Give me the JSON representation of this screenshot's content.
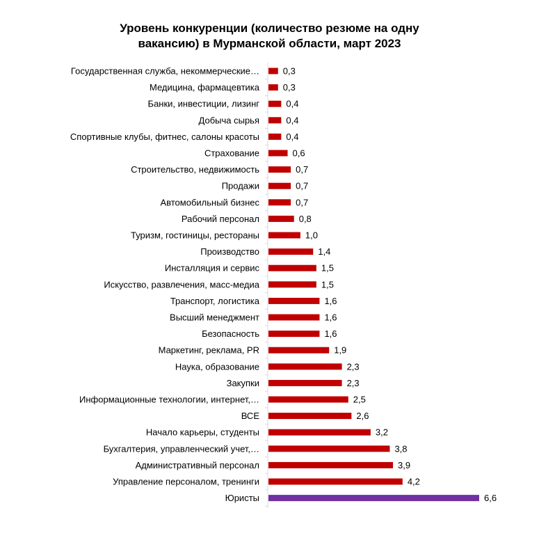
{
  "chart_data": {
    "type": "bar",
    "orientation": "horizontal",
    "title_lines": [
      "Уровень конкуренции (количество резюме на одну",
      "вакансию) в Мурманской области, март 2023"
    ],
    "xlabel": "",
    "ylabel": "",
    "xlim": [
      0,
      7.5
    ],
    "grid": false,
    "legend": "none",
    "categories": [
      "Государственная служба, некоммерческие…",
      "Медицина, фармацевтика",
      "Банки, инвестиции, лизинг",
      "Добыча сырья",
      "Спортивные клубы, фитнес, салоны красоты",
      "Страхование",
      "Строительство, недвижимость",
      "Продажи",
      "Автомобильный бизнес",
      "Рабочий персонал",
      "Туризм, гостиницы, рестораны",
      "Производство",
      "Инсталляция и сервис",
      "Искусство, развлечения, масс-медиа",
      "Транспорт, логистика",
      "Высший менеджмент",
      "Безопасность",
      "Маркетинг, реклама, PR",
      "Наука, образование",
      "Закупки",
      "Информационные технологии, интернет,…",
      "ВСЕ",
      "Начало карьеры, студенты",
      "Бухгалтерия, управленческий учет,…",
      "Административный персонал",
      "Управление персоналом, тренинги",
      "Юристы"
    ],
    "values": [
      0.3,
      0.3,
      0.4,
      0.4,
      0.4,
      0.6,
      0.7,
      0.7,
      0.7,
      0.8,
      1.0,
      1.4,
      1.5,
      1.5,
      1.6,
      1.6,
      1.6,
      1.9,
      2.3,
      2.3,
      2.5,
      2.6,
      3.2,
      3.8,
      3.9,
      4.2,
      6.6
    ],
    "value_labels": [
      "0,3",
      "0,3",
      "0,4",
      "0,4",
      "0,4",
      "0,6",
      "0,7",
      "0,7",
      "0,7",
      "0,8",
      "1,0",
      "1,4",
      "1,5",
      "1,5",
      "1,6",
      "1,6",
      "1,6",
      "1,9",
      "2,3",
      "2,3",
      "2,5",
      "2,6",
      "3,2",
      "3,8",
      "3,9",
      "4,2",
      "6,6"
    ],
    "colors": {
      "default_bar": "#C00000",
      "highlight_bar": "#7030A0",
      "axis": "#D9D9D9"
    },
    "highlight_category": "Юристы"
  }
}
